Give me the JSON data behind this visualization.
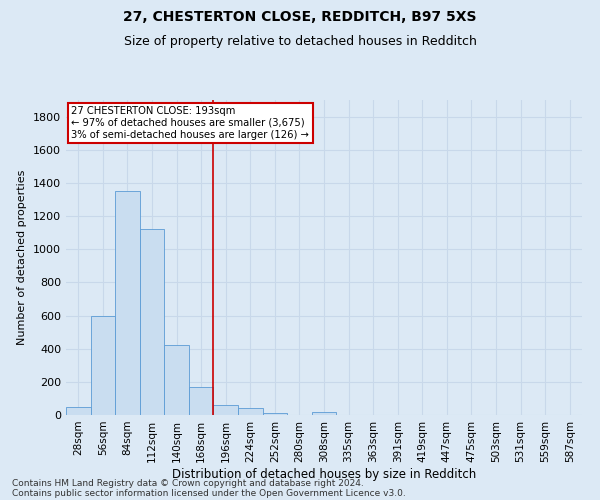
{
  "title1": "27, CHESTERTON CLOSE, REDDITCH, B97 5XS",
  "title2": "Size of property relative to detached houses in Redditch",
  "xlabel": "Distribution of detached houses by size in Redditch",
  "ylabel": "Number of detached properties",
  "footnote1": "Contains HM Land Registry data © Crown copyright and database right 2024.",
  "footnote2": "Contains public sector information licensed under the Open Government Licence v3.0.",
  "annotation_title": "27 CHESTERTON CLOSE: 193sqm",
  "annotation_line1": "← 97% of detached houses are smaller (3,675)",
  "annotation_line2": "3% of semi-detached houses are larger (126) →",
  "bar_labels": [
    "28sqm",
    "56sqm",
    "84sqm",
    "112sqm",
    "140sqm",
    "168sqm",
    "196sqm",
    "224sqm",
    "252sqm",
    "280sqm",
    "308sqm",
    "335sqm",
    "363sqm",
    "391sqm",
    "419sqm",
    "447sqm",
    "475sqm",
    "503sqm",
    "531sqm",
    "559sqm",
    "587sqm"
  ],
  "bar_values": [
    50,
    595,
    1350,
    1120,
    425,
    170,
    60,
    40,
    15,
    0,
    20,
    0,
    0,
    0,
    0,
    0,
    0,
    0,
    0,
    0,
    0
  ],
  "bar_color": "#c9ddf0",
  "bar_edge_color": "#5b9bd5",
  "vline_x_index": 5.5,
  "vline_color": "#cc0000",
  "annotation_box_color": "#cc0000",
  "ylim": [
    0,
    1900
  ],
  "yticks": [
    0,
    200,
    400,
    600,
    800,
    1000,
    1200,
    1400,
    1600,
    1800
  ],
  "bg_color": "#dce9f5",
  "plot_bg_color": "#dce9f5",
  "grid_color": "#c8d8ea",
  "title1_fontsize": 10,
  "title2_fontsize": 9,
  "xlabel_fontsize": 8.5,
  "ylabel_fontsize": 8,
  "tick_fontsize": 8,
  "footnote_fontsize": 6.5
}
